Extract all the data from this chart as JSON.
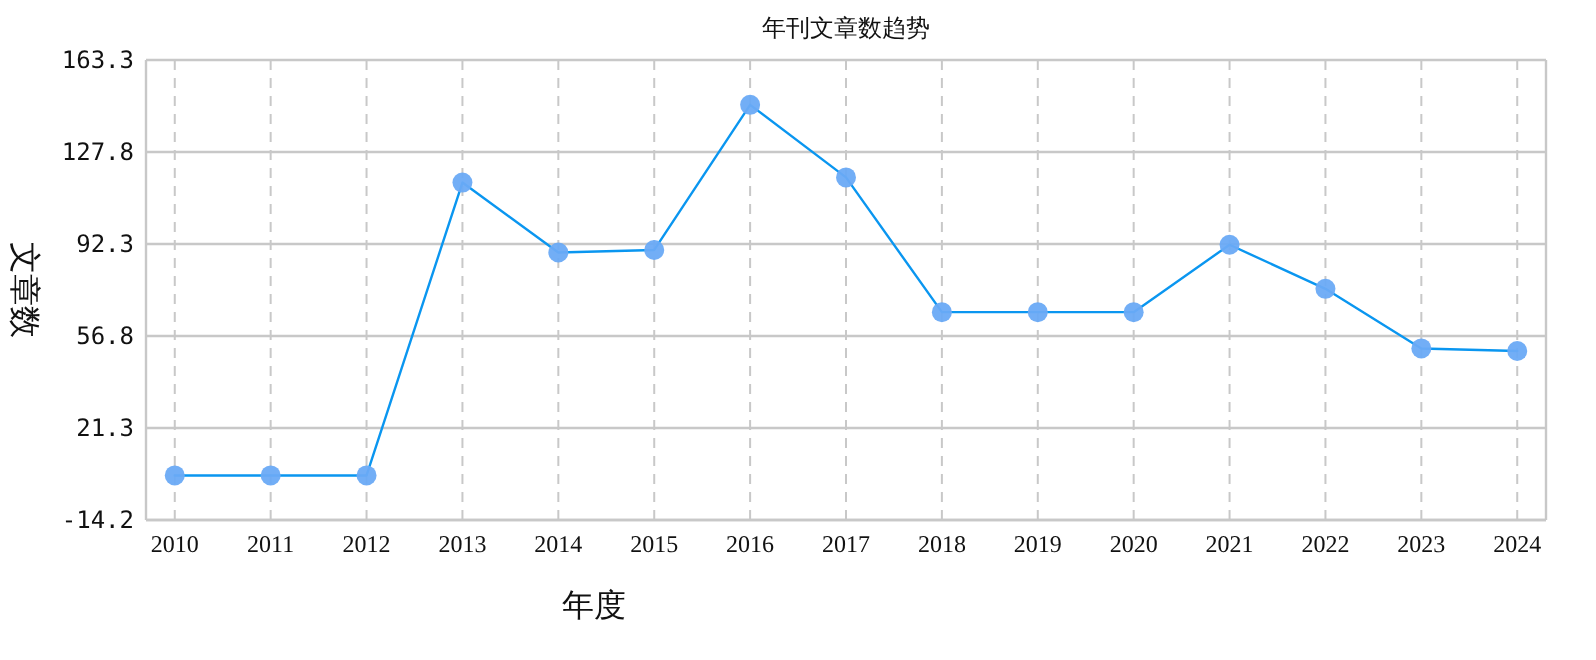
{
  "chart_data": {
    "type": "line",
    "title": "年刊文章数趋势",
    "xlabel": "年度",
    "ylabel": "文章数",
    "categories": [
      "2010",
      "2011",
      "2012",
      "2013",
      "2014",
      "2015",
      "2016",
      "2017",
      "2018",
      "2019",
      "2020",
      "2021",
      "2022",
      "2023",
      "2024"
    ],
    "series": [
      {
        "color": "#0a96f0",
        "values": [
          3,
          3,
          3,
          116,
          89,
          90,
          146,
          118,
          66,
          66,
          66,
          92,
          75,
          52,
          51
        ]
      }
    ],
    "ylim": [
      -14.2,
      163.3
    ],
    "yticks": [
      -14.2,
      21.3,
      56.8,
      92.3,
      127.8,
      163.3
    ],
    "grid": true,
    "marker": "circle",
    "line_style": "solid"
  }
}
